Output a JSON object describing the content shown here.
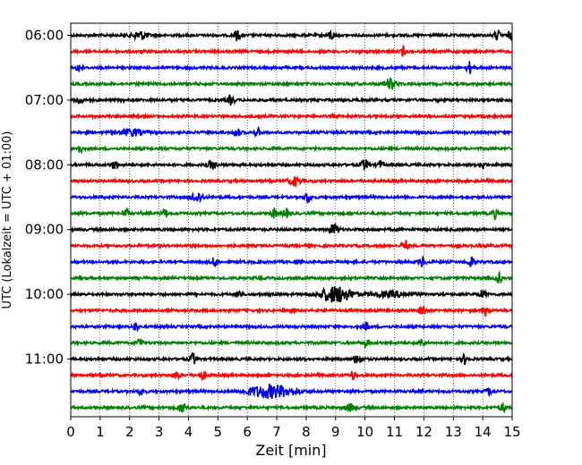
{
  "chart_data": {
    "type": "line",
    "title": "",
    "xlabel": "Zeit  [min]",
    "ylabel": "UTC (Lokalzeit = UTC + 01:00)",
    "xlim": [
      0,
      15
    ],
    "x_ticks": [
      "0",
      "1",
      "2",
      "3",
      "4",
      "5",
      "6",
      "7",
      "8",
      "9",
      "10",
      "11",
      "12",
      "13",
      "14",
      "15"
    ],
    "grid": "vertical dotted lines at each minute",
    "y_ticks": [
      {
        "label": "06:00",
        "trace": 0
      },
      {
        "label": "07:00",
        "trace": 4
      },
      {
        "label": "08:00",
        "trace": 8
      },
      {
        "label": "09:00",
        "trace": 12
      },
      {
        "label": "10:00",
        "trace": 16
      },
      {
        "label": "11:00",
        "trace": 20
      }
    ],
    "trace_colors": [
      "#000000",
      "#ff0000",
      "#0000ff",
      "#008000"
    ],
    "traces": [
      {
        "start": "06:00",
        "color": "#000000",
        "events": [
          [
            2.35,
            0.5,
            0.25
          ],
          [
            5.65,
            0.6,
            0.1
          ],
          [
            8.85,
            0.6,
            0.1
          ],
          [
            14.5,
            0.6,
            0.1
          ],
          [
            14.95,
            0.5,
            0.1
          ]
        ]
      },
      {
        "start": "06:15",
        "color": "#ff0000",
        "events": [
          [
            11.3,
            0.7,
            0.06
          ]
        ]
      },
      {
        "start": "06:30",
        "color": "#0000ff",
        "events": [
          [
            0.3,
            0.6,
            0.1
          ],
          [
            13.55,
            0.7,
            0.1
          ]
        ]
      },
      {
        "start": "06:45",
        "color": "#008000",
        "events": [
          [
            10.85,
            0.6,
            0.2
          ]
        ]
      },
      {
        "start": "07:00",
        "color": "#000000",
        "events": [
          [
            0.3,
            0.5,
            0.1
          ],
          [
            5.45,
            0.6,
            0.1
          ]
        ]
      },
      {
        "start": "07:15",
        "color": "#ff0000",
        "events": []
      },
      {
        "start": "07:30",
        "color": "#0000ff",
        "events": [
          [
            2.1,
            0.4,
            0.4
          ],
          [
            5.65,
            0.6,
            0.1
          ],
          [
            6.35,
            0.5,
            0.1
          ]
        ]
      },
      {
        "start": "07:45",
        "color": "#008000",
        "events": [
          [
            0.3,
            0.5,
            0.1
          ]
        ]
      },
      {
        "start": "08:00",
        "color": "#000000",
        "events": [
          [
            1.5,
            0.6,
            0.1
          ],
          [
            4.8,
            0.5,
            0.15
          ],
          [
            10.0,
            0.6,
            0.15
          ],
          [
            10.5,
            0.5,
            0.1
          ],
          [
            14.0,
            0.5,
            0.1
          ]
        ]
      },
      {
        "start": "08:15",
        "color": "#ff0000",
        "events": [
          [
            7.6,
            0.5,
            0.2
          ]
        ]
      },
      {
        "start": "08:30",
        "color": "#0000ff",
        "events": [
          [
            4.3,
            0.6,
            0.2
          ],
          [
            8.05,
            0.7,
            0.1
          ]
        ]
      },
      {
        "start": "08:45",
        "color": "#008000",
        "events": [
          [
            1.9,
            0.5,
            0.1
          ],
          [
            3.2,
            0.5,
            0.1
          ],
          [
            6.9,
            0.6,
            0.1
          ],
          [
            7.3,
            0.6,
            0.1
          ],
          [
            14.4,
            0.6,
            0.1
          ]
        ]
      },
      {
        "start": "09:00",
        "color": "#000000",
        "events": [
          [
            8.95,
            0.7,
            0.15
          ]
        ]
      },
      {
        "start": "09:15",
        "color": "#ff0000",
        "events": [
          [
            11.35,
            0.6,
            0.1
          ]
        ]
      },
      {
        "start": "09:30",
        "color": "#0000ff",
        "events": [
          [
            4.9,
            0.6,
            0.1
          ],
          [
            11.95,
            0.6,
            0.1
          ],
          [
            13.6,
            0.6,
            0.1
          ]
        ]
      },
      {
        "start": "09:45",
        "color": "#008000",
        "events": [
          [
            14.55,
            0.6,
            0.1
          ]
        ]
      },
      {
        "start": "10:00",
        "color": "#000000",
        "events": [
          [
            5.7,
            0.5,
            0.1
          ],
          [
            9.0,
            1.0,
            0.55
          ],
          [
            11.0,
            0.3,
            0.7
          ],
          [
            14.0,
            0.5,
            0.1
          ]
        ]
      },
      {
        "start": "10:15",
        "color": "#ff0000",
        "events": [
          [
            11.95,
            0.6,
            0.1
          ],
          [
            14.1,
            0.6,
            0.1
          ]
        ]
      },
      {
        "start": "10:30",
        "color": "#0000ff",
        "events": [
          [
            2.2,
            0.5,
            0.1
          ],
          [
            10.05,
            0.5,
            0.1
          ]
        ]
      },
      {
        "start": "10:45",
        "color": "#008000",
        "events": [
          [
            2.35,
            0.6,
            0.1
          ],
          [
            10.05,
            0.5,
            0.1
          ],
          [
            11.95,
            0.5,
            0.1
          ]
        ]
      },
      {
        "start": "11:00",
        "color": "#000000",
        "events": [
          [
            4.15,
            0.7,
            0.1
          ],
          [
            9.75,
            0.6,
            0.15
          ],
          [
            13.4,
            0.6,
            0.1
          ]
        ]
      },
      {
        "start": "11:15",
        "color": "#ff0000",
        "events": [
          [
            3.6,
            0.5,
            0.1
          ],
          [
            4.5,
            0.5,
            0.1
          ],
          [
            9.6,
            0.5,
            0.1
          ]
        ]
      },
      {
        "start": "11:30",
        "color": "#0000ff",
        "events": [
          [
            2.4,
            0.4,
            0.1
          ],
          [
            6.8,
            0.8,
            0.8
          ],
          [
            14.2,
            0.4,
            0.1
          ]
        ]
      },
      {
        "start": "11:45",
        "color": "#008000",
        "events": [
          [
            3.8,
            0.6,
            0.15
          ],
          [
            9.5,
            0.4,
            0.2
          ],
          [
            14.7,
            0.5,
            0.1
          ]
        ]
      }
    ]
  }
}
